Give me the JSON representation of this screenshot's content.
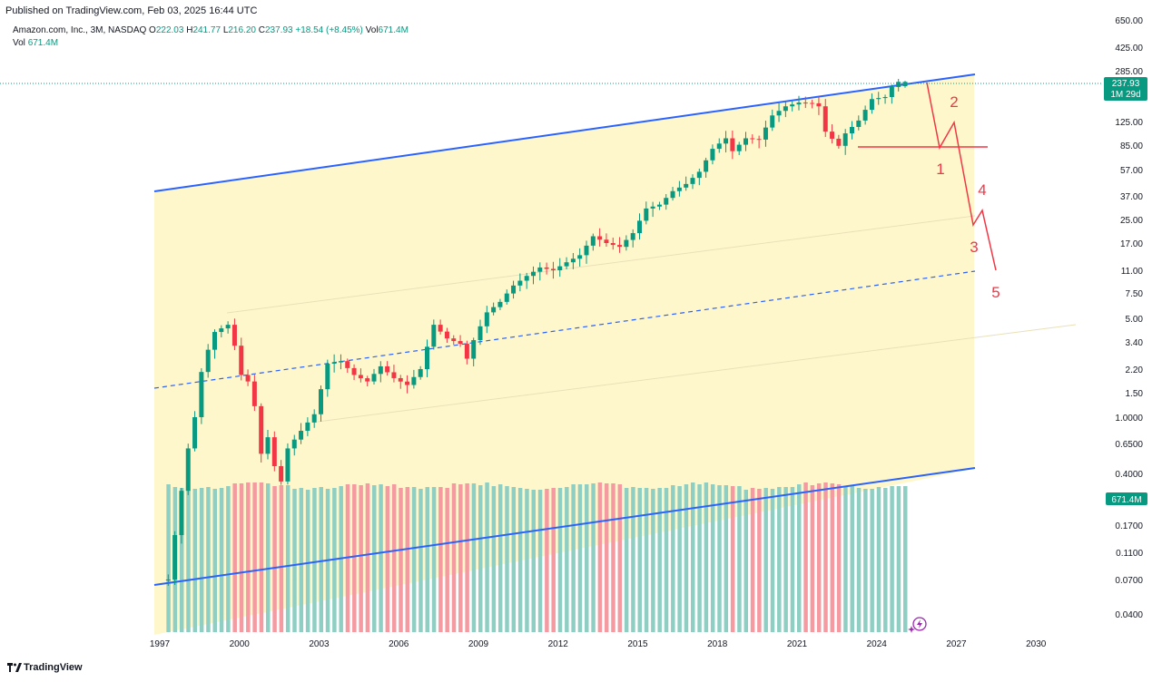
{
  "header": {
    "published": "Published on TradingView.com, Feb 03, 2025 16:44 UTC",
    "symbol": "Amazon.com, Inc., 3M, NASDAQ",
    "o_label": "O",
    "o_value": "222.03",
    "h_label": "H",
    "h_value": "241.77",
    "l_label": "L",
    "l_value": "216.20",
    "c_label": "C",
    "c_value": "237.93",
    "change": "+18.54 (+8.45%)",
    "vol_label": "Vol",
    "vol_value": "671.4M",
    "vol2_label": "Vol",
    "vol2_value": "671.4M"
  },
  "footer": {
    "brand": "TradingView"
  },
  "price_tag": {
    "price": "237.93",
    "countdown": "1M 29d"
  },
  "volume_tag": "671.4M",
  "colors": {
    "up": "#089981",
    "down": "#f23645",
    "up_vol": "#8fcfc3",
    "down_vol": "#f59aa0",
    "channel": "#2962ff",
    "fill": "#fff7cc",
    "annotation": "#f23645"
  },
  "chart_data": {
    "type": "candlestick",
    "title": "Amazon.com, Inc., 3M, NASDAQ",
    "y_scale": "log",
    "y_ticks": [
      "650.00",
      "425.00",
      "285.00",
      "125.00",
      "85.00",
      "57.00",
      "37.00",
      "25.00",
      "17.00",
      "11.00",
      "7.50",
      "5.00",
      "3.40",
      "2.20",
      "1.50",
      "1.0000",
      "0.6500",
      "0.4000",
      "0.1700",
      "0.1100",
      "0.0700",
      "0.0400"
    ],
    "x_ticks": [
      "1997",
      "2000",
      "2003",
      "2006",
      "2009",
      "2012",
      "2015",
      "2018",
      "2021",
      "2024",
      "2027",
      "2030"
    ],
    "last": {
      "open": 222.03,
      "high": 241.77,
      "low": 216.2,
      "close": 237.93,
      "volume": "671.4M"
    },
    "annotations": [
      "1",
      "2",
      "3",
      "4",
      "5"
    ],
    "path": [
      [
        "1997-Q3",
        0.07
      ],
      [
        "1998-Q1",
        0.3
      ],
      [
        "1998-Q2",
        0.6
      ],
      [
        "1998-Q3",
        1.0
      ],
      [
        "1998-Q4",
        2.1
      ],
      [
        "1999-Q1",
        3.0
      ],
      [
        "1999-Q2",
        4.0
      ],
      [
        "1999-Q4",
        4.5
      ],
      [
        "2000-Q1",
        3.2
      ],
      [
        "2000-Q2",
        2.0
      ],
      [
        "2000-Q3",
        1.8
      ],
      [
        "2000-Q4",
        1.2
      ],
      [
        "2001-Q1",
        0.55
      ],
      [
        "2001-Q2",
        0.72
      ],
      [
        "2001-Q3",
        0.45
      ],
      [
        "2001-Q4",
        0.35
      ],
      [
        "2002-Q1",
        0.6
      ],
      [
        "2002-Q3",
        0.8
      ],
      [
        "2003-Q1",
        1.05
      ],
      [
        "2003-Q3",
        2.4
      ],
      [
        "2004-Q1",
        2.5
      ],
      [
        "2004-Q3",
        2.0
      ],
      [
        "2005-Q1",
        1.8
      ],
      [
        "2005-Q3",
        2.3
      ],
      [
        "2006-Q1",
        1.9
      ],
      [
        "2006-Q3",
        1.7
      ],
      [
        "2007-Q1",
        2.2
      ],
      [
        "2007-Q3",
        4.5
      ],
      [
        "2008-Q1",
        3.6
      ],
      [
        "2008-Q3",
        3.3
      ],
      [
        "2008-Q4",
        2.6
      ],
      [
        "2009-Q1",
        3.5
      ],
      [
        "2009-Q3",
        5.5
      ],
      [
        "2010-Q1",
        6.5
      ],
      [
        "2010-Q3",
        8.5
      ],
      [
        "2011-Q1",
        10.0
      ],
      [
        "2011-Q3",
        11.5
      ],
      [
        "2012-Q1",
        11.0
      ],
      [
        "2012-Q3",
        12.5
      ],
      [
        "2013-Q1",
        14.0
      ],
      [
        "2013-Q3",
        19.0
      ],
      [
        "2014-Q1",
        17.0
      ],
      [
        "2014-Q3",
        16.0
      ],
      [
        "2015-Q1",
        20.0
      ],
      [
        "2015-Q3",
        30.0
      ],
      [
        "2016-Q1",
        32.0
      ],
      [
        "2016-Q3",
        40.0
      ],
      [
        "2017-Q1",
        45.0
      ],
      [
        "2017-Q3",
        55.0
      ],
      [
        "2018-Q1",
        80.0
      ],
      [
        "2018-Q3",
        95.0
      ],
      [
        "2018-Q4",
        77.0
      ],
      [
        "2019-Q2",
        95.0
      ],
      [
        "2019-Q4",
        93.0
      ],
      [
        "2020-Q2",
        138.0
      ],
      [
        "2020-Q4",
        160.0
      ],
      [
        "2021-Q2",
        170.0
      ],
      [
        "2021-Q4",
        168.0
      ],
      [
        "2022-Q1",
        160.0
      ],
      [
        "2022-Q2",
        106.0
      ],
      [
        "2022-Q4",
        84.0
      ],
      [
        "2023-Q1",
        103.0
      ],
      [
        "2023-Q3",
        127.0
      ],
      [
        "2024-Q1",
        180.0
      ],
      [
        "2024-Q3",
        186.0
      ],
      [
        "2024-Q4",
        219.0
      ],
      [
        "2025-Q1",
        237.93
      ]
    ]
  }
}
